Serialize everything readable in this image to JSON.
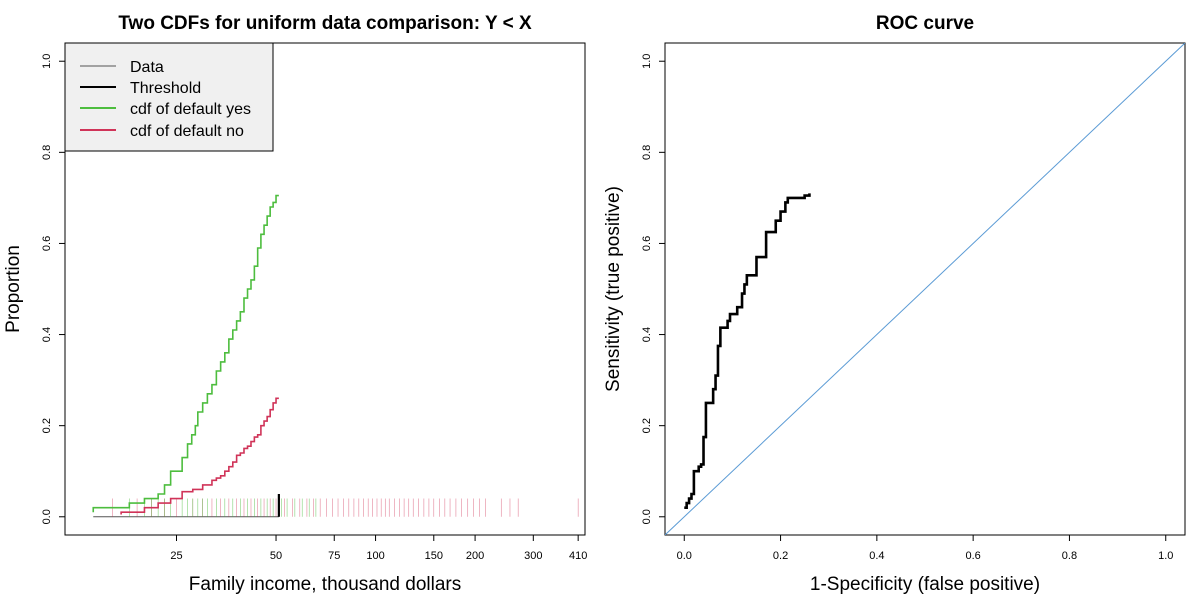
{
  "colors": {
    "yes": "#4dbd3e",
    "no": "#d03358",
    "threshold": "#000000",
    "data": "#555555",
    "diagonal": "#5b9bd5",
    "roc": "#000000",
    "legend_bg": "#f0f0f0"
  },
  "chart_data": [
    {
      "type": "line",
      "title": "Two CDFs for uniform data comparison: Y < X",
      "xlabel": "Family income, thousand dollars",
      "ylabel": "Proportion",
      "x_scale": "log",
      "xlim": [
        11.5,
        430
      ],
      "ylim": [
        -0.04,
        1.04
      ],
      "x_ticks": [
        25,
        50,
        75,
        100,
        150,
        200,
        300,
        410
      ],
      "y_ticks": [
        0.0,
        0.2,
        0.4,
        0.6,
        0.8,
        1.0
      ],
      "y_tick_labels": [
        "0.0",
        "0.2",
        "0.4",
        "0.6",
        "0.8",
        "1.0"
      ],
      "legend": {
        "position": "top-left",
        "entries": [
          {
            "label": "Data",
            "color_key": "data"
          },
          {
            "label": "Threshold",
            "color_key": "threshold"
          },
          {
            "label": "cdf of default yes",
            "color_key": "yes"
          },
          {
            "label": "cdf of default no",
            "color_key": "no"
          }
        ]
      },
      "threshold": 51,
      "series": [
        {
          "name": "cdf of default yes",
          "color_key": "yes",
          "x": [
            14,
            18,
            20,
            22,
            23,
            24,
            26,
            27,
            27.8,
            28.5,
            29,
            30,
            31,
            32,
            33,
            34,
            35,
            36,
            37,
            38,
            39,
            40,
            41,
            42,
            43,
            44,
            45,
            46,
            47,
            48,
            49,
            50,
            51
          ],
          "y": [
            0.01,
            0.02,
            0.03,
            0.04,
            0.05,
            0.07,
            0.1,
            0.13,
            0.16,
            0.18,
            0.2,
            0.23,
            0.25,
            0.27,
            0.29,
            0.32,
            0.34,
            0.36,
            0.39,
            0.41,
            0.43,
            0.45,
            0.48,
            0.5,
            0.52,
            0.55,
            0.59,
            0.62,
            0.64,
            0.66,
            0.68,
            0.69,
            0.705
          ]
        },
        {
          "name": "cdf of default no",
          "color_key": "no",
          "x": [
            17,
            20,
            22,
            24,
            26,
            28,
            30,
            32,
            33,
            34,
            35,
            36,
            37,
            38,
            39,
            40,
            41,
            42,
            43,
            44,
            45,
            46,
            47,
            48,
            49,
            50,
            51
          ],
          "y": [
            0.005,
            0.01,
            0.02,
            0.03,
            0.04,
            0.055,
            0.06,
            0.07,
            0.08,
            0.085,
            0.09,
            0.1,
            0.11,
            0.12,
            0.135,
            0.14,
            0.15,
            0.155,
            0.165,
            0.175,
            0.18,
            0.2,
            0.21,
            0.22,
            0.235,
            0.25,
            0.26
          ]
        }
      ],
      "rug": {
        "yes_x": [
          18,
          20,
          21,
          22,
          23,
          24,
          26,
          27,
          28,
          29,
          30,
          31,
          33,
          35,
          37,
          39,
          41,
          43,
          45,
          47,
          49,
          52,
          54,
          57,
          60,
          63,
          66
        ],
        "no_x": [
          16,
          19,
          21,
          23,
          25,
          28,
          30,
          32,
          34,
          36,
          38,
          40,
          42,
          44,
          46,
          48,
          50,
          53,
          56,
          59,
          62,
          65,
          68,
          71,
          74,
          77,
          80,
          83,
          86,
          89,
          92,
          95,
          98,
          101,
          104,
          107,
          110,
          114,
          118,
          122,
          126,
          130,
          135,
          140,
          145,
          150,
          156,
          162,
          168,
          175,
          182,
          190,
          198,
          206,
          215,
          240,
          255,
          270,
          410
        ]
      }
    },
    {
      "type": "line",
      "title": "ROC curve",
      "xlabel": "1-Specificity (false positive)",
      "ylabel": "Sensitivity (true positive)",
      "xlim": [
        -0.04,
        1.04
      ],
      "ylim": [
        -0.04,
        1.04
      ],
      "x_ticks": [
        0.0,
        0.2,
        0.4,
        0.6,
        0.8,
        1.0
      ],
      "x_tick_labels": [
        "0.0",
        "0.2",
        "0.4",
        "0.6",
        "0.8",
        "1.0"
      ],
      "y_ticks": [
        0.0,
        0.2,
        0.4,
        0.6,
        0.8,
        1.0
      ],
      "y_tick_labels": [
        "0.0",
        "0.2",
        "0.4",
        "0.6",
        "0.8",
        "1.0"
      ],
      "series": [
        {
          "name": "",
          "color_key": "roc",
          "x": [
            0.0,
            0.005,
            0.01,
            0.015,
            0.02,
            0.03,
            0.035,
            0.04,
            0.045,
            0.05,
            0.06,
            0.065,
            0.07,
            0.075,
            0.08,
            0.09,
            0.095,
            0.1,
            0.11,
            0.12,
            0.125,
            0.13,
            0.14,
            0.15,
            0.16,
            0.17,
            0.18,
            0.19,
            0.2,
            0.21,
            0.215,
            0.22,
            0.24,
            0.25,
            0.26
          ],
          "y": [
            0.02,
            0.03,
            0.04,
            0.05,
            0.1,
            0.11,
            0.115,
            0.175,
            0.25,
            0.25,
            0.28,
            0.31,
            0.375,
            0.415,
            0.415,
            0.43,
            0.445,
            0.445,
            0.46,
            0.49,
            0.51,
            0.53,
            0.53,
            0.57,
            0.57,
            0.625,
            0.625,
            0.65,
            0.67,
            0.69,
            0.7,
            0.7,
            0.7,
            0.705,
            0.71
          ]
        }
      ]
    }
  ]
}
